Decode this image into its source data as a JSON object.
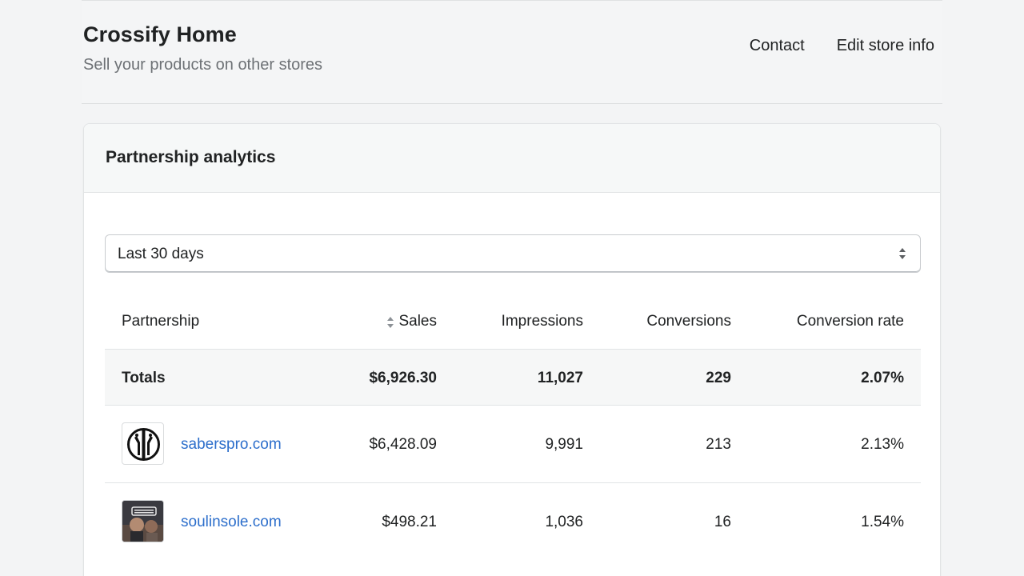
{
  "header": {
    "title": "Crossify Home",
    "subtitle": "Sell your products on other stores",
    "actions": {
      "contact": "Contact",
      "edit_store": "Edit store info"
    }
  },
  "card": {
    "title": "Partnership analytics",
    "range_select": {
      "value": "Last 30 days"
    }
  },
  "table": {
    "columns": {
      "partnership": "Partnership",
      "sales": "Sales",
      "impressions": "Impressions",
      "conversions": "Conversions",
      "conversion_rate": "Conversion rate"
    },
    "totals": {
      "label": "Totals",
      "sales": "$6,926.30",
      "impressions": "11,027",
      "conversions": "229",
      "conversion_rate": "2.07%"
    },
    "rows": [
      {
        "name": "saberspro.com",
        "sales": "$6,428.09",
        "impressions": "9,991",
        "conversions": "213",
        "conversion_rate": "2.13%"
      },
      {
        "name": "soulinsole.com",
        "sales": "$498.21",
        "impressions": "1,036",
        "conversions": "16",
        "conversion_rate": "1.54%"
      }
    ]
  },
  "colors": {
    "link": "#2c6ecb",
    "text": "#202223",
    "muted": "#6d7175"
  },
  "icons": {
    "select_caret": "select-caret-icon",
    "sort": "sort-icon"
  }
}
